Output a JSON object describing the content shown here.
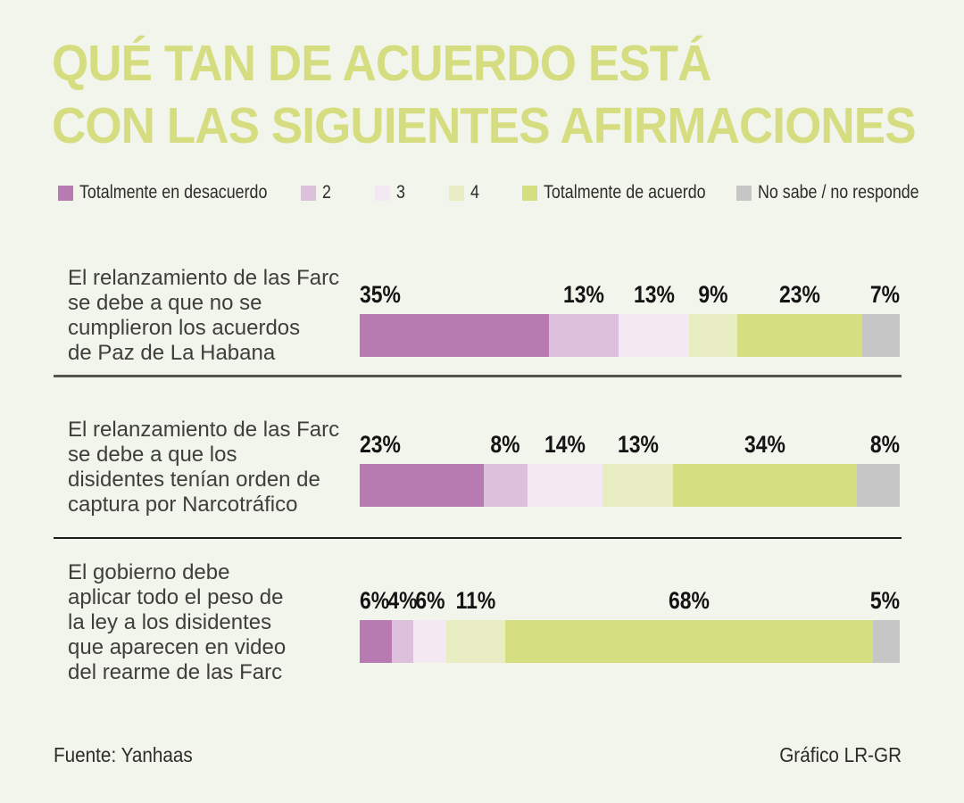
{
  "title": {
    "line1": "QUÉ TAN DE ACUERDO ESTÁ",
    "line2": "CON LAS SIGUIENTES AFIRMACIONES"
  },
  "chart_data": {
    "type": "bar",
    "variant": "horizontal-stacked",
    "title": "QUÉ TAN DE ACUERDO ESTÁ CON LAS SIGUIENTES AFIRMACIONES",
    "unit": "%",
    "xlim": [
      0,
      100
    ],
    "legend_position": "top",
    "grid": false,
    "categories": [
      "El relanzamiento de las Farc\nse debe a que no se\ncumplieron los acuerdos\nde Paz de La Habana",
      "El relanzamiento de las Farc\nse debe a que los\ndisidentes tenían orden de\ncaptura por Narcotráfico",
      "El gobierno debe\naplicar todo el peso de\nla ley a los disidentes\nque aparecen en video\ndel rearme de las Farc"
    ],
    "series": [
      {
        "name": "Totalmente en desacuerdo",
        "color": "#b77bb1",
        "values": [
          35,
          23,
          6
        ]
      },
      {
        "name": "2",
        "color": "#dcc0dc",
        "values": [
          13,
          8,
          4
        ]
      },
      {
        "name": "3",
        "color": "#f4e9f3",
        "values": [
          13,
          14,
          6
        ]
      },
      {
        "name": "4",
        "color": "#e9edc3",
        "values": [
          9,
          13,
          11
        ]
      },
      {
        "name": "Totalmente de acuerdo",
        "color": "#d6de82",
        "values": [
          23,
          34,
          68
        ]
      },
      {
        "name": "No sabe / no responde",
        "color": "#c6c6c6",
        "values": [
          7,
          8,
          5
        ]
      }
    ]
  },
  "footer": {
    "source": "Fuente: Yanhaas",
    "credit": "Gráfico LR-GR"
  },
  "colors": {
    "background": "#f2f5eb",
    "title": "#d5dd80",
    "statement_text": "#3e3e3a",
    "percent_label": "#141414",
    "divider_top": "#55554b",
    "divider_bottom": "#1c1c1c"
  }
}
